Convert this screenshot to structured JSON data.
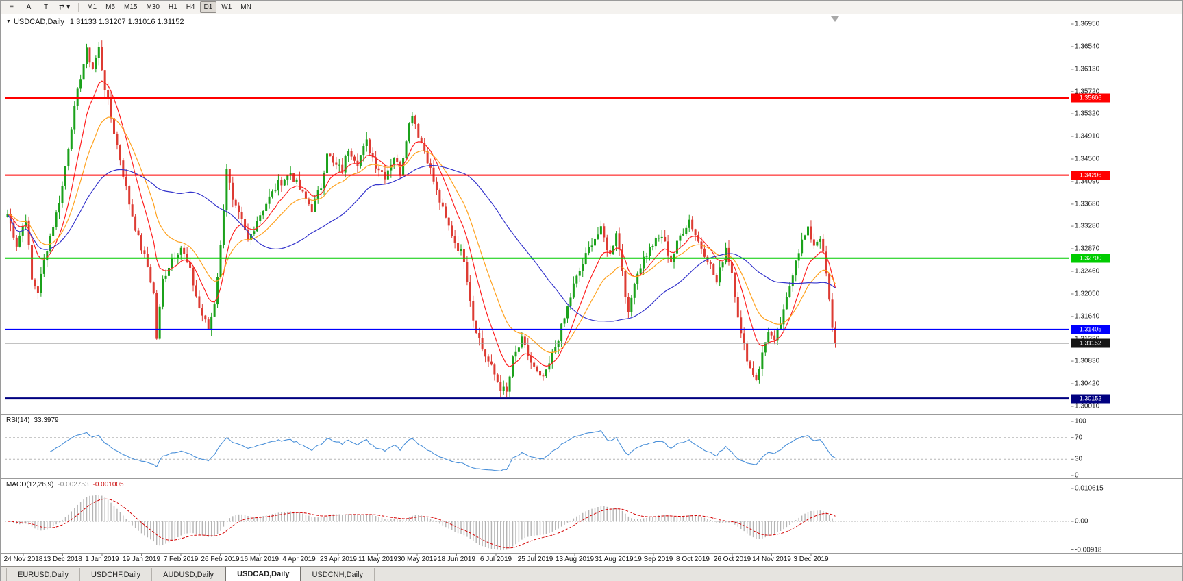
{
  "toolbar": {
    "icon_buttons": [
      {
        "name": "charts-menu-button",
        "glyph": "≡"
      },
      {
        "name": "cursor-tool-button",
        "glyph": "A"
      },
      {
        "name": "text-tool-button",
        "glyph": "T"
      },
      {
        "name": "scroll-mode-dropdown-button",
        "glyph": "⇄ ▾"
      }
    ],
    "timeframes": [
      "M1",
      "M5",
      "M15",
      "M30",
      "H1",
      "H4",
      "D1",
      "W1",
      "MN"
    ],
    "active_timeframe": "D1"
  },
  "chart": {
    "marker": "▼",
    "symbol": "USDCAD,Daily",
    "ohlc": "1.31133 1.31207 1.31016 1.31152",
    "price_axis": [
      "1.36950",
      "1.36540",
      "1.36130",
      "1.35720",
      "1.35320",
      "1.34910",
      "1.34500",
      "1.34090",
      "1.33680",
      "1.33280",
      "1.32870",
      "1.32460",
      "1.32050",
      "1.31640",
      "1.31230",
      "1.30830",
      "1.30420",
      "1.30010"
    ],
    "levels": [
      {
        "value": 1.35606,
        "label": "1.35606",
        "color": "#ff0000",
        "width": 2
      },
      {
        "value": 1.34206,
        "label": "1.34206",
        "color": "#ff0000",
        "width": 2
      },
      {
        "value": 1.327,
        "label": "1.32700",
        "color": "#00cc00",
        "width": 2
      },
      {
        "value": 1.31405,
        "label": "1.31405",
        "color": "#0000ff",
        "width": 2
      },
      {
        "value": 1.30152,
        "label": "1.30152",
        "color": "#000080",
        "width": 3
      }
    ],
    "current_price": {
      "value": 1.31152,
      "label": "1.31152",
      "tag_color": "#151515",
      "line_color": "#9e9e9e"
    }
  },
  "indicators": {
    "rsi": {
      "name": "RSI(14)",
      "value": "33.3979",
      "axis": [
        "100",
        "70",
        "30",
        "0"
      ],
      "upper": 70,
      "lower": 30,
      "line_color": "#4a90d9"
    },
    "macd": {
      "name": "MACD(12,26,9)",
      "main_value": "-0.002753",
      "signal_value": "-0.001005",
      "axis": [
        "0.010615",
        "0.00",
        "-0.00918"
      ],
      "hist_color": "#b4b4b4",
      "signal_color": "#d40000"
    }
  },
  "dates": [
    "24 Nov 2018",
    "13 Dec 2018",
    "1 Jan 2019",
    "19 Jan 2019",
    "7 Feb 2019",
    "26 Feb 2019",
    "16 Mar 2019",
    "4 Apr 2019",
    "23 Apr 2019",
    "11 May 2019",
    "30 May 2019",
    "18 Jun 2019",
    "6 Jul 2019",
    "25 Jul 2019",
    "13 Aug 2019",
    "31 Aug 2019",
    "19 Sep 2019",
    "8 Oct 2019",
    "26 Oct 2019",
    "14 Nov 2019",
    "3 Dec 2019"
  ],
  "tabs": [
    {
      "label": "EURUSD,Daily",
      "active": false
    },
    {
      "label": "USDCHF,Daily",
      "active": false
    },
    {
      "label": "AUDUSD,Daily",
      "active": false
    },
    {
      "label": "USDCAD,Daily",
      "active": true
    },
    {
      "label": "USDCNH,Daily",
      "active": false
    }
  ],
  "chart_data": {
    "type": "candlestick",
    "symbol": "USDCAD",
    "timeframe": "Daily",
    "candle_count": 273,
    "seed": 7,
    "bull_color": "#1ba11b",
    "bear_color": "#dd3b33",
    "moving_averages": [
      {
        "period": 10,
        "method": "ema",
        "color": "#ff2020"
      },
      {
        "period": 21,
        "method": "ema",
        "color": "#ffa21f"
      },
      {
        "period": 50,
        "method": "sma",
        "color": "#3434cc"
      }
    ],
    "close_anchors": [
      [
        0,
        1.335
      ],
      [
        3,
        1.3295
      ],
      [
        6,
        1.3345
      ],
      [
        8,
        1.323
      ],
      [
        10,
        1.321
      ],
      [
        13,
        1.329
      ],
      [
        16,
        1.335
      ],
      [
        18,
        1.34
      ],
      [
        21,
        1.351
      ],
      [
        24,
        1.36
      ],
      [
        26,
        1.3645
      ],
      [
        28,
        1.3615
      ],
      [
        30,
        1.365
      ],
      [
        32,
        1.358
      ],
      [
        34,
        1.3525
      ],
      [
        37,
        1.345
      ],
      [
        40,
        1.337
      ],
      [
        43,
        1.3305
      ],
      [
        46,
        1.3255
      ],
      [
        48,
        1.3205
      ],
      [
        49,
        1.3125
      ],
      [
        51,
        1.323
      ],
      [
        54,
        1.327
      ],
      [
        57,
        1.329
      ],
      [
        60,
        1.3245
      ],
      [
        63,
        1.318
      ],
      [
        66,
        1.314
      ],
      [
        68,
        1.319
      ],
      [
        70,
        1.329
      ],
      [
        72,
        1.3435
      ],
      [
        74,
        1.337
      ],
      [
        77,
        1.3335
      ],
      [
        79,
        1.33
      ],
      [
        82,
        1.334
      ],
      [
        85,
        1.337
      ],
      [
        89,
        1.3405
      ],
      [
        93,
        1.3425
      ],
      [
        97,
        1.3385
      ],
      [
        100,
        1.336
      ],
      [
        103,
        1.34
      ],
      [
        105,
        1.3465
      ],
      [
        107,
        1.344
      ],
      [
        110,
        1.343
      ],
      [
        112,
        1.347
      ],
      [
        115,
        1.3445
      ],
      [
        118,
        1.348
      ],
      [
        121,
        1.344
      ],
      [
        124,
        1.342
      ],
      [
        127,
        1.3455
      ],
      [
        129,
        1.3425
      ],
      [
        131,
        1.349
      ],
      [
        133,
        1.3535
      ],
      [
        135,
        1.3495
      ],
      [
        138,
        1.345
      ],
      [
        141,
        1.339
      ],
      [
        144,
        1.334
      ],
      [
        147,
        1.33
      ],
      [
        150,
        1.327
      ],
      [
        153,
        1.316
      ],
      [
        156,
        1.3105
      ],
      [
        159,
        1.307
      ],
      [
        162,
        1.3035
      ],
      [
        164,
        1.3025
      ],
      [
        166,
        1.3085
      ],
      [
        169,
        1.312
      ],
      [
        172,
        1.308
      ],
      [
        175,
        1.305
      ],
      [
        177,
        1.306
      ],
      [
        180,
        1.311
      ],
      [
        183,
        1.316
      ],
      [
        186,
        1.322
      ],
      [
        189,
        1.326
      ],
      [
        192,
        1.33
      ],
      [
        195,
        1.332
      ],
      [
        198,
        1.3275
      ],
      [
        200,
        1.332
      ],
      [
        202,
        1.325
      ],
      [
        204,
        1.3165
      ],
      [
        206,
        1.323
      ],
      [
        209,
        1.327
      ],
      [
        212,
        1.3295
      ],
      [
        215,
        1.331
      ],
      [
        218,
        1.3265
      ],
      [
        221,
        1.331
      ],
      [
        224,
        1.334
      ],
      [
        227,
        1.33
      ],
      [
        230,
        1.327
      ],
      [
        233,
        1.3225
      ],
      [
        236,
        1.329
      ],
      [
        238,
        1.3245
      ],
      [
        241,
        1.313
      ],
      [
        244,
        1.307
      ],
      [
        246,
        1.3052
      ],
      [
        248,
        1.3095
      ],
      [
        250,
        1.314
      ],
      [
        252,
        1.3115
      ],
      [
        255,
        1.317
      ],
      [
        257,
        1.322
      ],
      [
        259,
        1.327
      ],
      [
        261,
        1.33
      ],
      [
        263,
        1.332
      ],
      [
        265,
        1.3295
      ],
      [
        267,
        1.331
      ],
      [
        268,
        1.3275
      ],
      [
        269,
        1.324
      ],
      [
        270,
        1.319
      ],
      [
        271,
        1.314
      ],
      [
        272,
        1.31152
      ]
    ]
  }
}
